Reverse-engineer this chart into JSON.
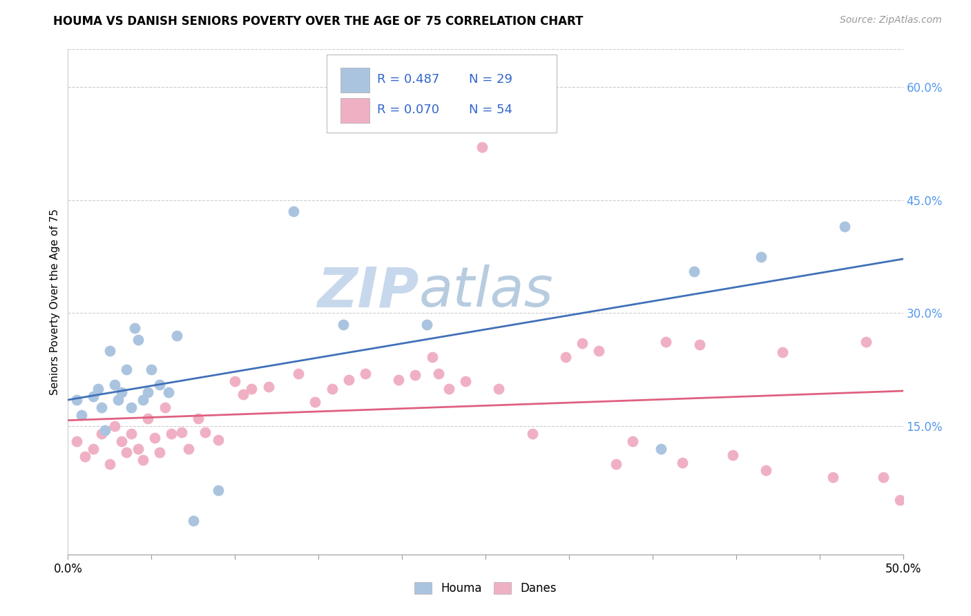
{
  "title": "HOUMA VS DANISH SENIORS POVERTY OVER THE AGE OF 75 CORRELATION CHART",
  "source": "Source: ZipAtlas.com",
  "ylabel": "Seniors Poverty Over the Age of 75",
  "xlim": [
    0.0,
    0.5
  ],
  "ylim": [
    -0.02,
    0.65
  ],
  "yticks_right": [
    0.15,
    0.3,
    0.45,
    0.6
  ],
  "ytick_right_labels": [
    "15.0%",
    "30.0%",
    "45.0%",
    "60.0%"
  ],
  "legend_r1": "R = 0.487",
  "legend_n1": "N = 29",
  "legend_r2": "R = 0.070",
  "legend_n2": "N = 54",
  "houma_color": "#aac4e0",
  "danes_color": "#f0b0c4",
  "houma_line_color": "#4070b8",
  "danes_line_color": "#e06080",
  "watermark_zip": "ZIP",
  "watermark_atlas": "atlas",
  "watermark_color": "#c8d8ec",
  "houma_x": [
    0.005,
    0.008,
    0.015,
    0.018,
    0.02,
    0.022,
    0.025,
    0.028,
    0.03,
    0.032,
    0.035,
    0.038,
    0.04,
    0.042,
    0.045,
    0.048,
    0.05,
    0.055,
    0.06,
    0.065,
    0.075,
    0.09,
    0.135,
    0.165,
    0.215,
    0.355,
    0.375,
    0.415,
    0.465
  ],
  "houma_y": [
    0.185,
    0.165,
    0.19,
    0.2,
    0.175,
    0.145,
    0.25,
    0.205,
    0.185,
    0.195,
    0.225,
    0.175,
    0.28,
    0.265,
    0.185,
    0.195,
    0.225,
    0.205,
    0.195,
    0.27,
    0.025,
    0.065,
    0.435,
    0.285,
    0.285,
    0.12,
    0.355,
    0.375,
    0.415
  ],
  "danes_x": [
    0.005,
    0.01,
    0.015,
    0.02,
    0.025,
    0.028,
    0.032,
    0.035,
    0.038,
    0.042,
    0.045,
    0.048,
    0.052,
    0.055,
    0.058,
    0.062,
    0.068,
    0.072,
    0.078,
    0.082,
    0.09,
    0.1,
    0.105,
    0.11,
    0.12,
    0.138,
    0.148,
    0.158,
    0.168,
    0.178,
    0.198,
    0.208,
    0.218,
    0.222,
    0.228,
    0.238,
    0.248,
    0.258,
    0.278,
    0.298,
    0.308,
    0.318,
    0.328,
    0.338,
    0.358,
    0.368,
    0.378,
    0.398,
    0.418,
    0.428,
    0.458,
    0.478,
    0.488,
    0.498
  ],
  "danes_y": [
    0.13,
    0.11,
    0.12,
    0.14,
    0.1,
    0.15,
    0.13,
    0.115,
    0.14,
    0.12,
    0.105,
    0.16,
    0.135,
    0.115,
    0.175,
    0.14,
    0.142,
    0.12,
    0.16,
    0.142,
    0.132,
    0.21,
    0.192,
    0.2,
    0.202,
    0.22,
    0.182,
    0.2,
    0.212,
    0.22,
    0.212,
    0.218,
    0.242,
    0.22,
    0.2,
    0.21,
    0.52,
    0.2,
    0.14,
    0.242,
    0.26,
    0.25,
    0.1,
    0.13,
    0.262,
    0.102,
    0.258,
    0.112,
    0.092,
    0.248,
    0.082,
    0.262,
    0.082,
    0.052
  ],
  "background_color": "#ffffff",
  "grid_color": "#cccccc"
}
